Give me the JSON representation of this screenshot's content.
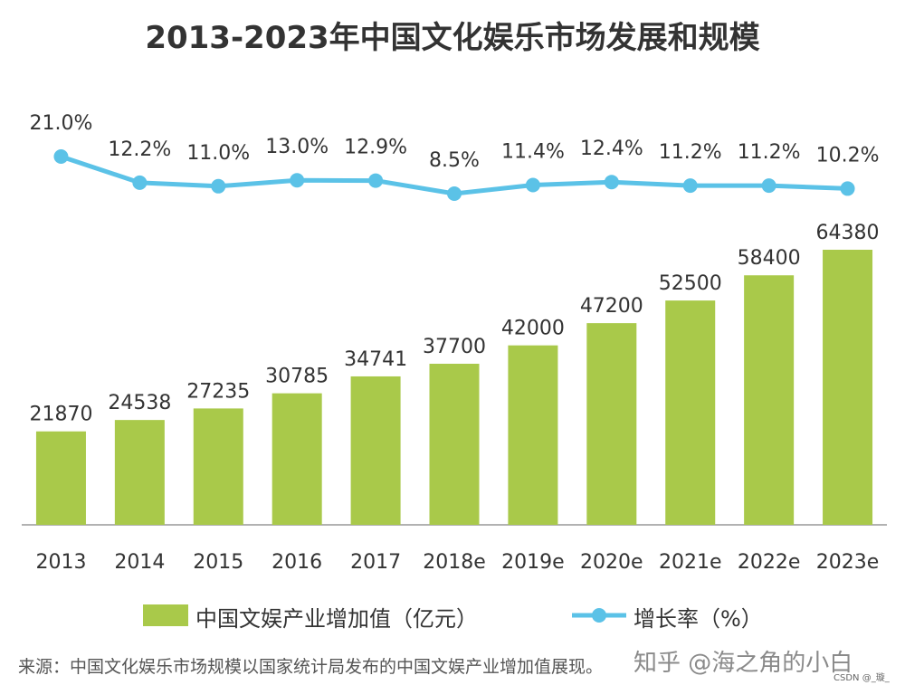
{
  "chart_data": {
    "type": "bar",
    "title": "2013-2023年中国文化娱乐市场发展和规模",
    "categories": [
      "2013",
      "2014",
      "2015",
      "2016",
      "2017",
      "2018e",
      "2019e",
      "2020e",
      "2021e",
      "2022e",
      "2023e"
    ],
    "series": [
      {
        "name": "中国文娱产业增加值（亿元）",
        "type": "bar",
        "values": [
          21870,
          24538,
          27235,
          30785,
          34741,
          37700,
          42000,
          47200,
          52500,
          58400,
          64380
        ],
        "labels": [
          "21870",
          "24538",
          "27235",
          "30785",
          "34741",
          "37700",
          "42000",
          "47200",
          "52500",
          "58400",
          "64380"
        ]
      },
      {
        "name": "增长率（%）",
        "type": "line",
        "values": [
          21.0,
          12.2,
          11.0,
          13.0,
          12.9,
          8.5,
          11.4,
          12.4,
          11.2,
          11.2,
          10.2
        ],
        "labels": [
          "21.0%",
          "12.2%",
          "11.0%",
          "13.0%",
          "12.9%",
          "8.5%",
          "11.4%",
          "12.4%",
          "11.2%",
          "11.2%",
          "10.2%"
        ]
      }
    ],
    "bar_ylim": [
      0,
      70000
    ],
    "line_ylim": [
      0,
      25
    ],
    "colors": {
      "bar": "#A9C94A",
      "line": "#5BC2E7",
      "axis": "#999999"
    },
    "legend_position": "bottom",
    "grid": false
  },
  "legend": {
    "bar_label": "中国文娱产业增加值（亿元）",
    "line_label": "增长率（%）"
  },
  "footer": {
    "source": "来源：中国文化娱乐市场规模以国家统计局发布的中国文娱产业增加值展现。",
    "watermark": "知乎 @海之角的小白",
    "csdn": "CSDN @_璇_"
  }
}
